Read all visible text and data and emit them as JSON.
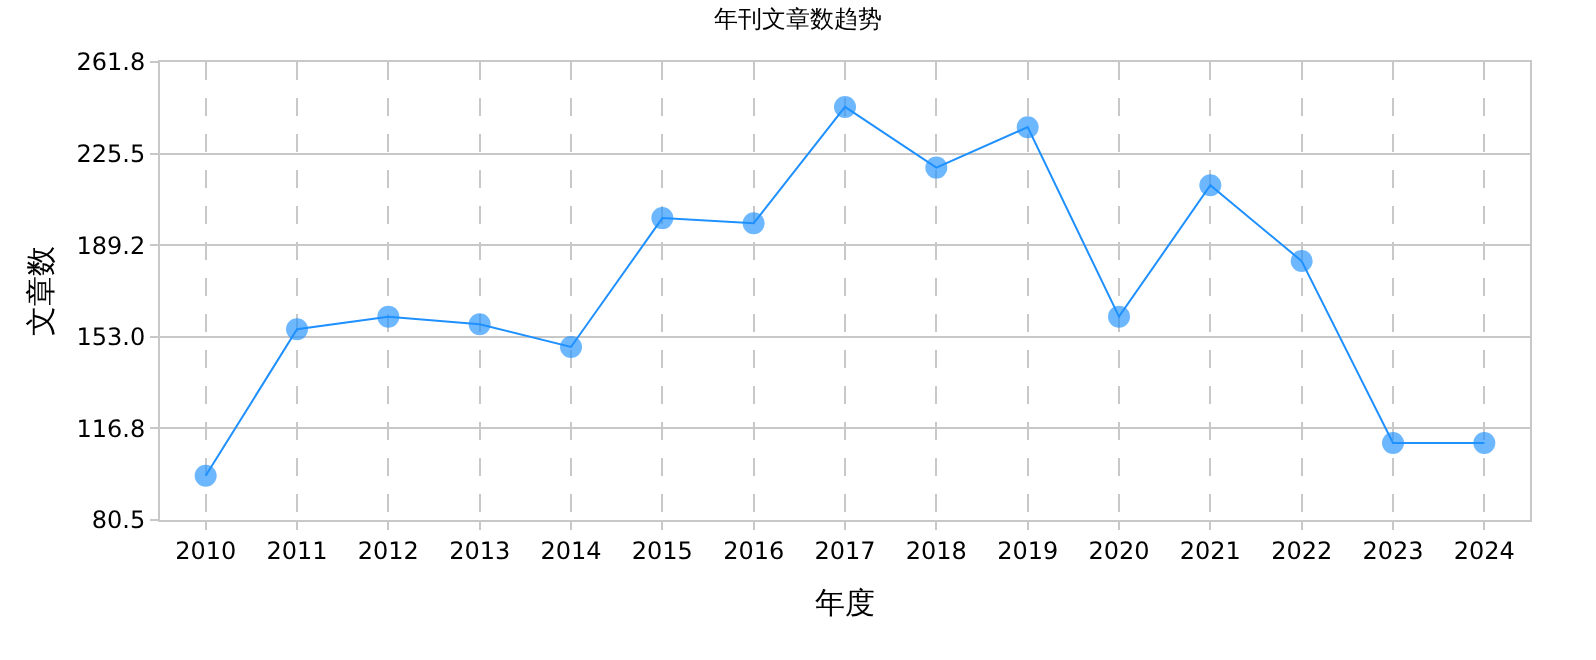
{
  "chart_data": {
    "type": "line",
    "title": "年刊文章数趋势",
    "xlabel": "年度",
    "ylabel": "文章数",
    "categories": [
      "2010",
      "2011",
      "2012",
      "2013",
      "2014",
      "2015",
      "2016",
      "2017",
      "2018",
      "2019",
      "2020",
      "2021",
      "2022",
      "2023",
      "2024"
    ],
    "series": [
      {
        "color": "#1e90ff",
        "values": [
          98,
          156,
          161,
          158,
          149,
          200,
          198,
          244,
          220,
          236,
          161,
          213,
          183,
          111,
          111
        ]
      }
    ],
    "ylim": [
      80.5,
      261.8
    ],
    "yticks": [
      {
        "value": 80.5,
        "label": "80.5"
      },
      {
        "value": 116.8,
        "label": "116.8"
      },
      {
        "value": 153.0,
        "label": "153.0"
      },
      {
        "value": 189.2,
        "label": "189.2"
      },
      {
        "value": 225.5,
        "label": "225.5"
      },
      {
        "value": 261.8,
        "label": "261.8"
      }
    ],
    "grid": true,
    "marker": "circle",
    "line_style": "solid"
  }
}
